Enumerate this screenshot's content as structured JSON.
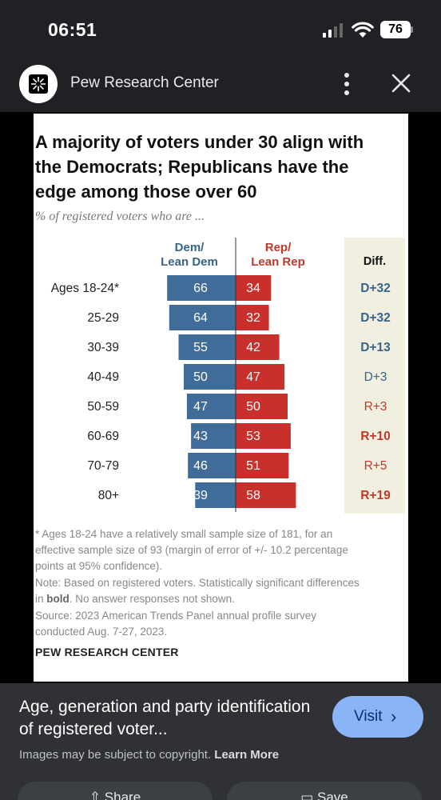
{
  "status_bar": {
    "time": "06:51",
    "battery": "76"
  },
  "header": {
    "site_name": "Pew Research Center"
  },
  "chart_card": {
    "title_lines": [
      "A majority of voters under 30 align with",
      "the Democrats; Republicans have the",
      "edge among those over 60"
    ],
    "subtitle": "% of registered voters who are ...",
    "footnote_lines": [
      "* Ages 18-24 have a relatively small sample size of 181, for an",
      "effective sample size of 93 (margin of error of +/- 10.2 percentage",
      "points at 95% confidence)."
    ],
    "note_line1": "Note: Based on registered voters. Statistically significant differences",
    "note_bold": "bold",
    "note_line2_prefix": "in ",
    "note_line2_suffix": ". No answer responses not shown.",
    "source_line1": "Source: 2023 American Trends Panel annual profile survey",
    "source_line2": "conducted Aug. 7-27, 2023.",
    "logo_text": "PEW RESEARCH CENTER"
  },
  "chart_data": {
    "type": "bar",
    "layout": "diverging",
    "series": [
      {
        "name": "Dem/ Lean Dem",
        "values": [
          66,
          64,
          55,
          50,
          47,
          43,
          46,
          39
        ]
      },
      {
        "name": "Rep/ Lean Rep",
        "values": [
          34,
          32,
          42,
          47,
          50,
          53,
          51,
          58
        ]
      }
    ],
    "categories": [
      "Ages 18-24*",
      "25-29",
      "30-39",
      "40-49",
      "50-59",
      "60-69",
      "70-79",
      "80+"
    ],
    "diff_header": "Diff.",
    "diff": [
      {
        "text": "D+32",
        "bold": true
      },
      {
        "text": "D+32",
        "bold": true
      },
      {
        "text": "D+13",
        "bold": true
      },
      {
        "text": "D+3",
        "bold": false
      },
      {
        "text": "R+3",
        "bold": false
      },
      {
        "text": "R+10",
        "bold": true
      },
      {
        "text": "R+5",
        "bold": false
      },
      {
        "text": "R+19",
        "bold": true
      }
    ],
    "colors": {
      "dem": "#3f6c99",
      "rep": "#c9302c",
      "dem_text": "#36648b",
      "rep_text": "#c0392b",
      "diff_bg": "#f1efe0"
    }
  },
  "bottom_panel": {
    "title": "Age, generation and party identification of registered voter...",
    "copyright": "Images may be subject to copyright.",
    "learn_more": "Learn More",
    "visit_label": "Visit",
    "share_label": "Share",
    "save_label": "Save"
  }
}
